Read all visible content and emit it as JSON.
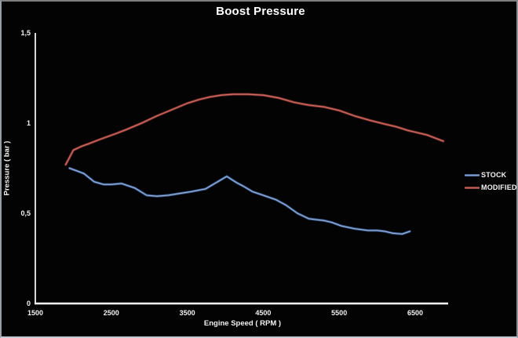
{
  "colors": {
    "background": "#030303",
    "axis": "#ffffff",
    "text": "#f2f2f2",
    "stock_dark": "#31507f",
    "stock_light": "#93aeda",
    "modified_dark": "#79302c",
    "modified_light": "#cc6a62"
  },
  "chart_data": {
    "type": "line",
    "title": "Boost Pressure",
    "xlabel": "Engine Speed ( RPM )",
    "ylabel": "Pressure ( bar )",
    "xlim": [
      1500,
      7000
    ],
    "ylim": [
      0,
      1.5
    ],
    "x_ticks": [
      1500,
      2500,
      3500,
      4500,
      5500,
      6500
    ],
    "y_tick_labels": [
      "0",
      "0,5",
      "1",
      "1,5"
    ],
    "y_tick_values": [
      0,
      0.5,
      1,
      1.5
    ],
    "grid": false,
    "legend_position": "right",
    "series": [
      {
        "name": "STOCK",
        "color": "#4f81bd",
        "x": [
          1950,
          2050,
          2140,
          2275,
          2400,
          2500,
          2635,
          2810,
          2965,
          3100,
          3250,
          3400,
          3550,
          3740,
          3900,
          4020,
          4150,
          4240,
          4360,
          4500,
          4670,
          4800,
          4950,
          5100,
          5200,
          5300,
          5400,
          5530,
          5700,
          5880,
          6000,
          6100,
          6200,
          6330,
          6430
        ],
        "y": [
          0.75,
          0.735,
          0.72,
          0.675,
          0.66,
          0.66,
          0.665,
          0.64,
          0.6,
          0.595,
          0.6,
          0.61,
          0.62,
          0.635,
          0.675,
          0.705,
          0.67,
          0.65,
          0.62,
          0.6,
          0.575,
          0.545,
          0.5,
          0.47,
          0.465,
          0.46,
          0.45,
          0.43,
          0.415,
          0.405,
          0.405,
          0.4,
          0.39,
          0.385,
          0.4
        ]
      },
      {
        "name": "MODIFIED",
        "color": "#c0504d",
        "x": [
          1900,
          1950,
          2000,
          2100,
          2200,
          2350,
          2550,
          2700,
          2900,
          3100,
          3300,
          3500,
          3650,
          3800,
          3950,
          4100,
          4300,
          4500,
          4700,
          4910,
          5100,
          5300,
          5500,
          5700,
          5910,
          6100,
          6250,
          6400,
          6500,
          6650,
          6870
        ],
        "y": [
          0.77,
          0.81,
          0.85,
          0.87,
          0.885,
          0.91,
          0.94,
          0.965,
          1.0,
          1.04,
          1.075,
          1.11,
          1.13,
          1.145,
          1.155,
          1.16,
          1.16,
          1.155,
          1.14,
          1.115,
          1.1,
          1.09,
          1.07,
          1.04,
          1.015,
          0.995,
          0.98,
          0.96,
          0.95,
          0.935,
          0.9
        ]
      }
    ]
  }
}
